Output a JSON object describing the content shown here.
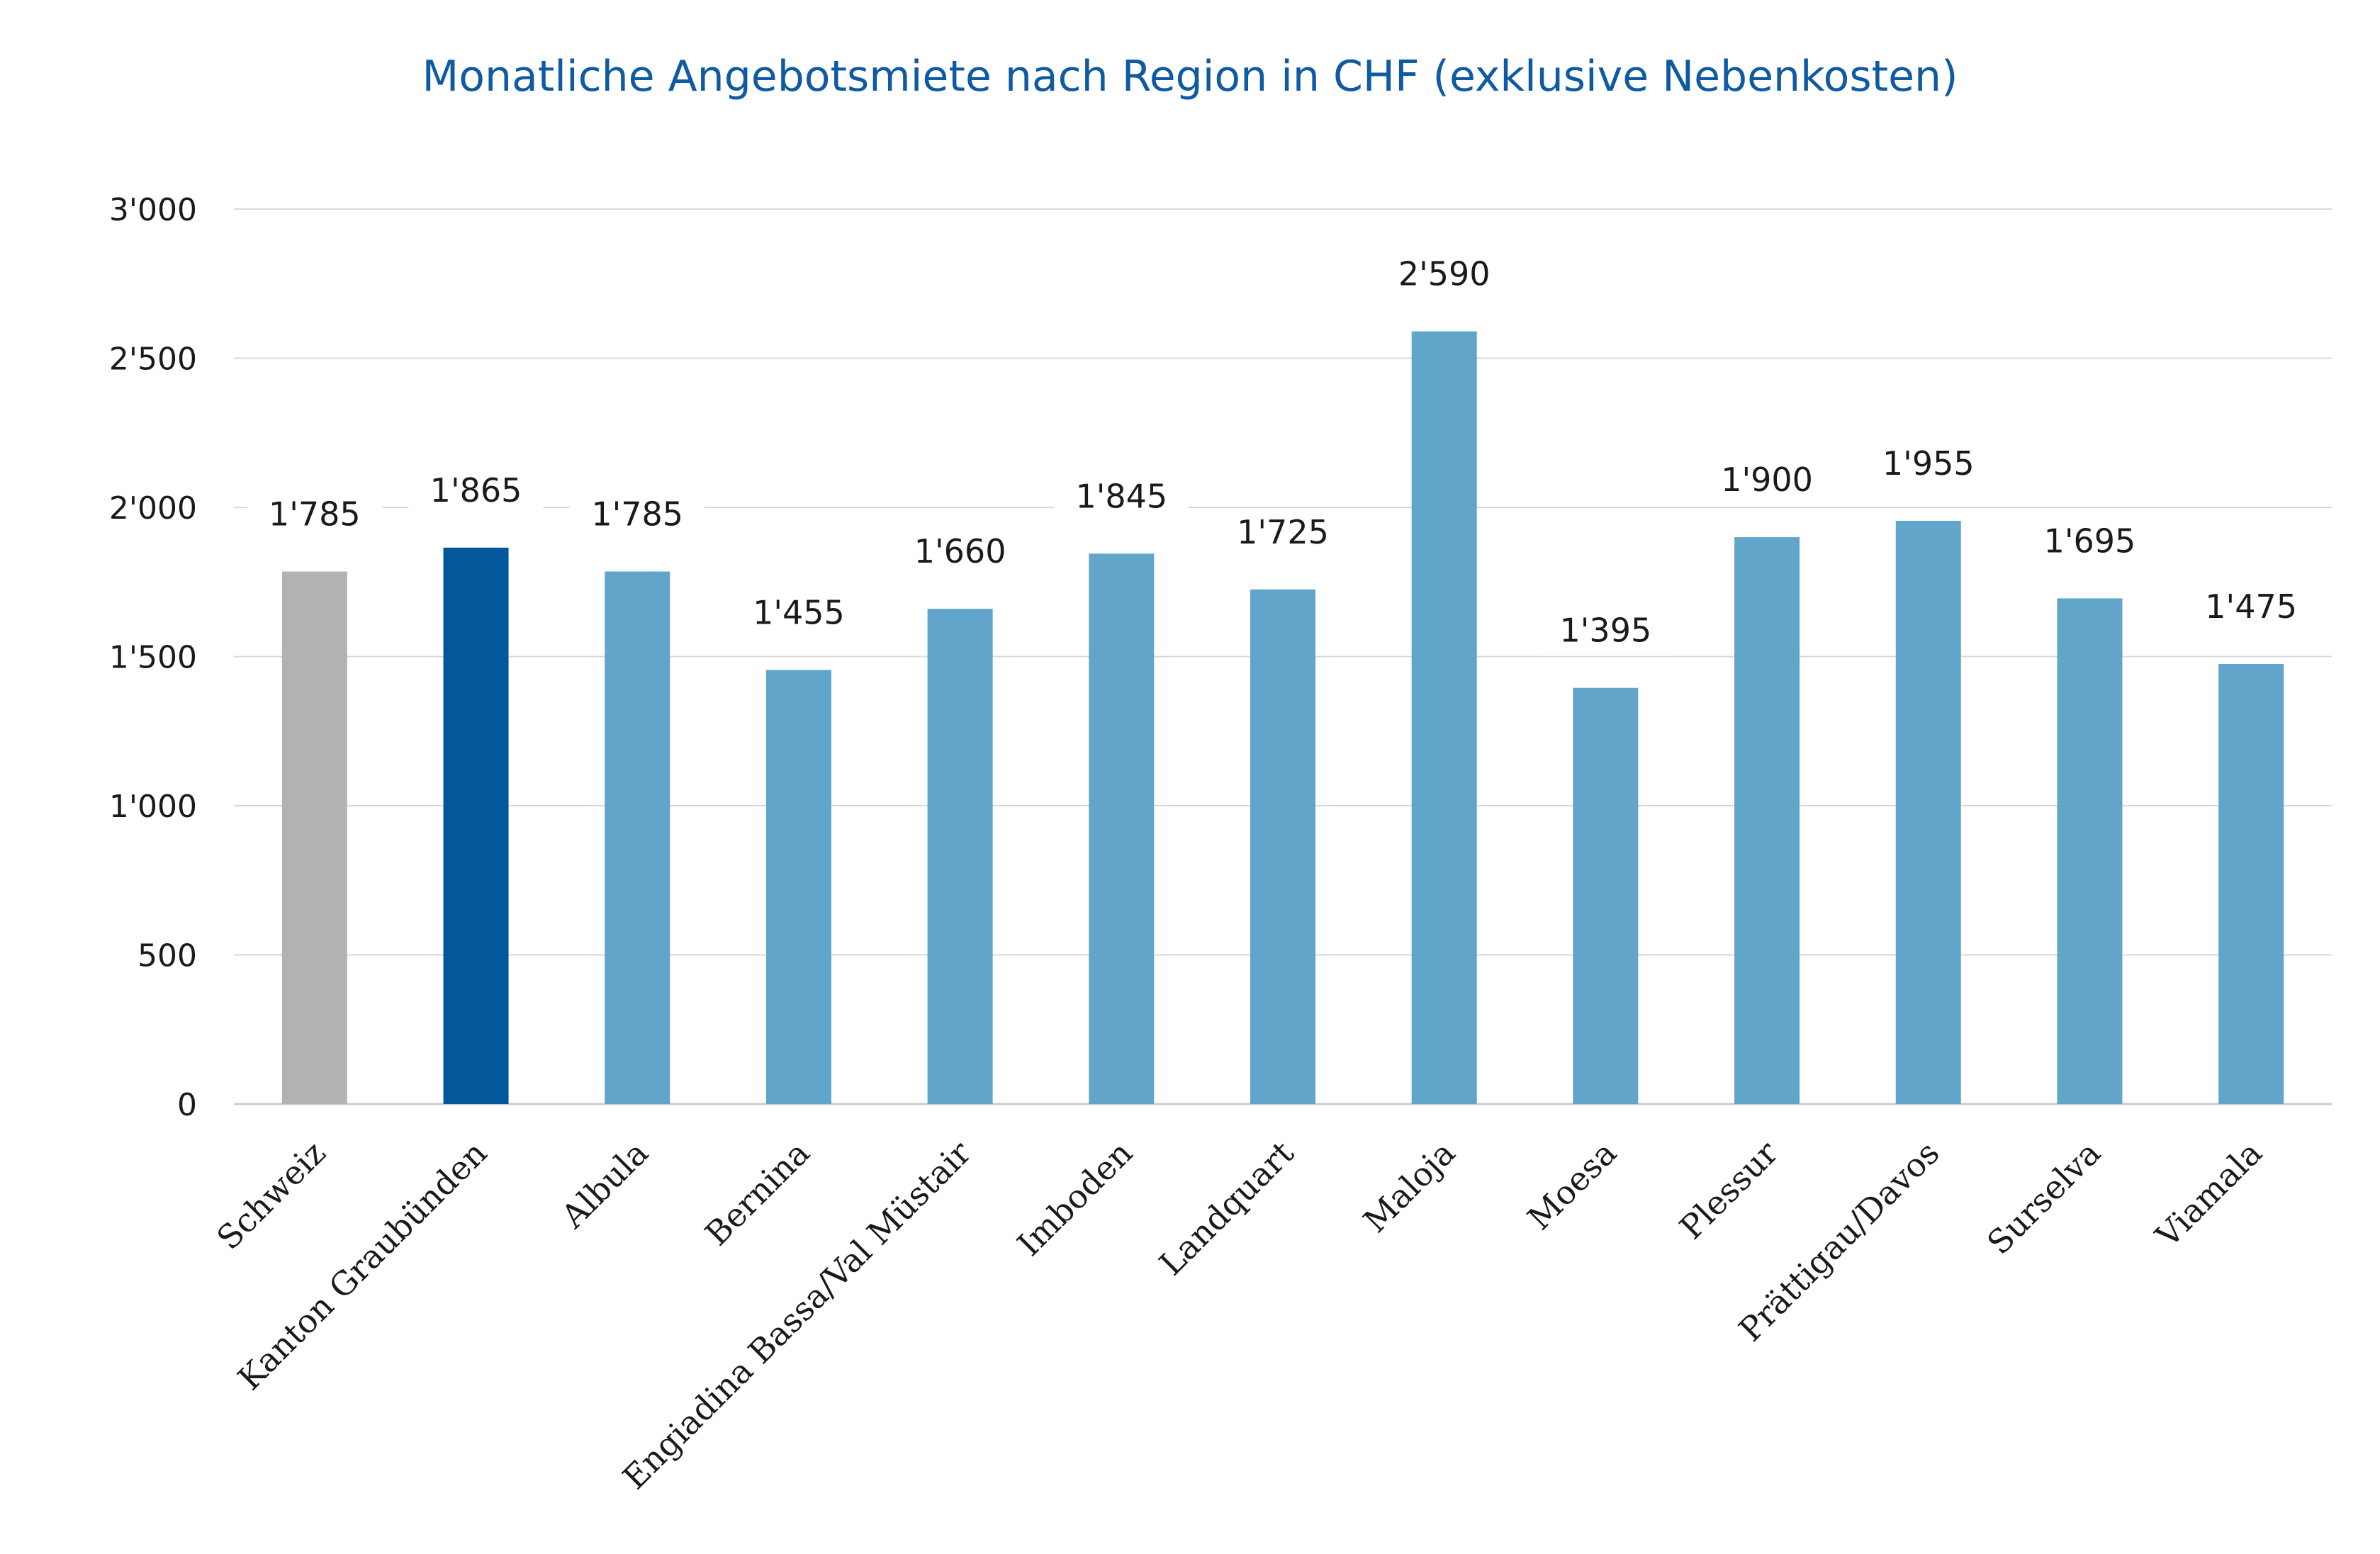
{
  "chart_data": {
    "type": "bar",
    "title": "Monatliche Angebotsmiete nach Region in CHF (exklusive Nebenkosten)",
    "xlabel": "",
    "ylabel": "",
    "ylim": [
      0,
      3000
    ],
    "yticks": [
      0,
      500,
      1000,
      1500,
      2000,
      2500,
      3000
    ],
    "ytick_labels": [
      "0",
      "500",
      "1'000",
      "1'500",
      "2'000",
      "2'500",
      "3'000"
    ],
    "grid": true,
    "legend": "none",
    "categories": [
      "Schweiz",
      "Kanton Graubünden",
      "Albula",
      "Bernina",
      "Engiadina Bassa/Val Müstair",
      "Imboden",
      "Landquart",
      "Maloja",
      "Moesa",
      "Plessur",
      "Prättigau/Davos",
      "Surselva",
      "Viamala"
    ],
    "values": [
      1785,
      1865,
      1785,
      1455,
      1660,
      1845,
      1725,
      2590,
      1395,
      1900,
      1955,
      1695,
      1475
    ],
    "data_labels": [
      "1'785",
      "1'865",
      "1'785",
      "1'455",
      "1'660",
      "1'845",
      "1'725",
      "2'590",
      "1'395",
      "1'900",
      "1'955",
      "1'695",
      "1'475"
    ],
    "colors": [
      "#b2b2b2",
      "#03579b",
      "#61a5cb",
      "#61a5cb",
      "#61a5cb",
      "#61a5cb",
      "#61a5cb",
      "#61a5cb",
      "#61a5cb",
      "#61a5cb",
      "#61a5cb",
      "#61a5cb",
      "#61a5cb"
    ]
  }
}
